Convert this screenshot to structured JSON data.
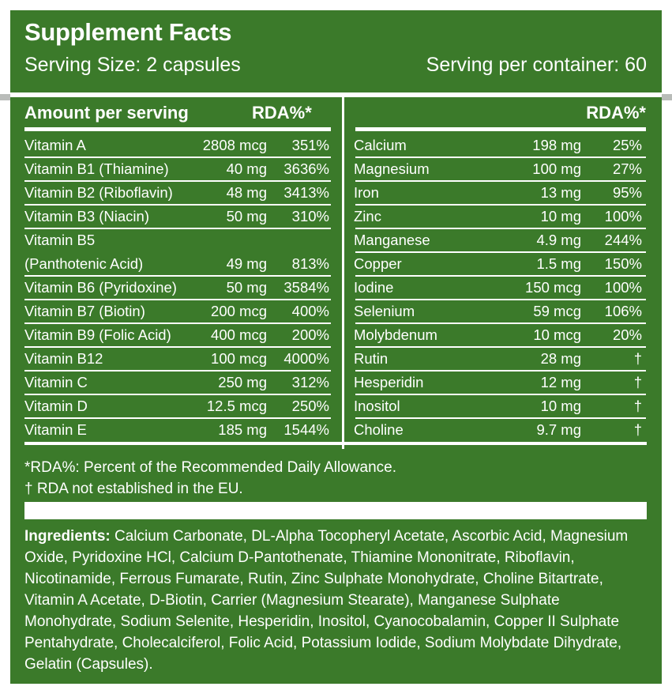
{
  "title": "Supplement Facts",
  "serving_size": "Serving Size: 2 capsules",
  "servings_per_container": "Serving per container: 60",
  "left_header": {
    "amount": "Amount per serving",
    "rda": "RDA%*"
  },
  "right_header": {
    "rda": "RDA%*"
  },
  "left_rows": [
    {
      "name": "Vitamin A",
      "amount": "2808 mcg",
      "rda": "351%"
    },
    {
      "name": "Vitamin B1 (Thiamine)",
      "amount": "40 mg",
      "rda": "3636%"
    },
    {
      "name": "Vitamin B2 (Riboflavin)",
      "amount": "48 mg",
      "rda": "3413%"
    },
    {
      "name": "Vitamin B3 (Niacin)",
      "amount": "50 mg",
      "rda": "310%"
    },
    {
      "name": "Vitamin B5",
      "name2": "(Panthotenic Acid)",
      "amount": "49 mg",
      "rda": "813%"
    },
    {
      "name": "Vitamin B6 (Pyridoxine)",
      "amount": "50 mg",
      "rda": "3584%"
    },
    {
      "name": "Vitamin B7 (Biotin)",
      "amount": "200 mcg",
      "rda": "400%"
    },
    {
      "name": "Vitamin B9 (Folic Acid)",
      "amount": "400 mcg",
      "rda": "200%"
    },
    {
      "name": "Vitamin B12",
      "amount": "100 mcg",
      "rda": "4000%"
    },
    {
      "name": "Vitamin C",
      "amount": "250 mg",
      "rda": "312%"
    },
    {
      "name": "Vitamin D",
      "amount": "12.5 mcg",
      "rda": "250%"
    },
    {
      "name": "Vitamin E",
      "amount": "185 mg",
      "rda": "1544%"
    }
  ],
  "right_rows": [
    {
      "name": "Calcium",
      "amount": "198 mg",
      "rda": "25%"
    },
    {
      "name": "Magnesium",
      "amount": "100 mg",
      "rda": "27%"
    },
    {
      "name": "Iron",
      "amount": "13 mg",
      "rda": "95%"
    },
    {
      "name": "Zinc",
      "amount": "10 mg",
      "rda": "100%"
    },
    {
      "name": "Manganese",
      "amount": "4.9 mg",
      "rda": "244%"
    },
    {
      "name": "Copper",
      "amount": "1.5 mg",
      "rda": "150%"
    },
    {
      "name": "Iodine",
      "amount": "150 mcg",
      "rda": "100%"
    },
    {
      "name": "Selenium",
      "amount": "59 mcg",
      "rda": "106%"
    },
    {
      "name": "Molybdenum",
      "amount": "10 mcg",
      "rda": "20%"
    },
    {
      "name": "Rutin",
      "amount": "28 mg",
      "rda": "†"
    },
    {
      "name": "Hesperidin",
      "amount": "12 mg",
      "rda": "†"
    },
    {
      "name": "Inositol",
      "amount": "10 mg",
      "rda": "†"
    },
    {
      "name": "Choline",
      "amount": "9.7 mg",
      "rda": "†"
    }
  ],
  "footnotes": {
    "rda": "*RDA%: Percent of the Recommended Daily Allowance.",
    "dagger": "† RDA not established in the EU."
  },
  "ingredients": {
    "label": "Ingredients:",
    "text": " Calcium Carbonate, DL-Alpha Tocopheryl Acetate, Ascorbic Acid, Magnesium Oxide, Pyridoxine HCl, Calcium D-Pantothenate, Thiamine Mononitrate, Riboflavin, Nicotinamide, Ferrous Fumarate, Rutin, Zinc Sulphate Monohydrate, Choline Bitartrate, Vitamin A Acetate, D-Biotin, Carrier (Magnesium Stearate), Manganese Sulphate Monohydrate, Sodium Selenite, Hesperidin, Inositol, Cyanocobalamin, Copper II Sulphate Pentahydrate, Cholecalciferol, Folic Acid, Potassium Iodide, Sodium Molybdate Dihydrate, Gelatin (Capsules)."
  },
  "colors": {
    "panel": "#3b7a2a",
    "text": "#ffffff"
  }
}
